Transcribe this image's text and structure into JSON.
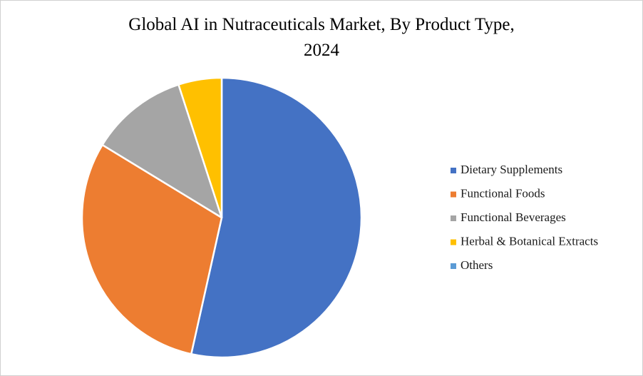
{
  "chart_data": {
    "type": "pie",
    "title": "Global AI in Nutraceuticals Market, By Product Type,",
    "subtitle": "2024",
    "categories": [
      "Dietary Supplements",
      "Functional Foods",
      "Functional Beverages",
      "Herbal & Botanical Extracts",
      "Others"
    ],
    "values": [
      53.5,
      30.2,
      11.3,
      5.0,
      0
    ],
    "colors": [
      "#4472c4",
      "#ed7d31",
      "#a5a5a5",
      "#ffc000",
      "#5b9bd5"
    ],
    "legend": "right"
  }
}
